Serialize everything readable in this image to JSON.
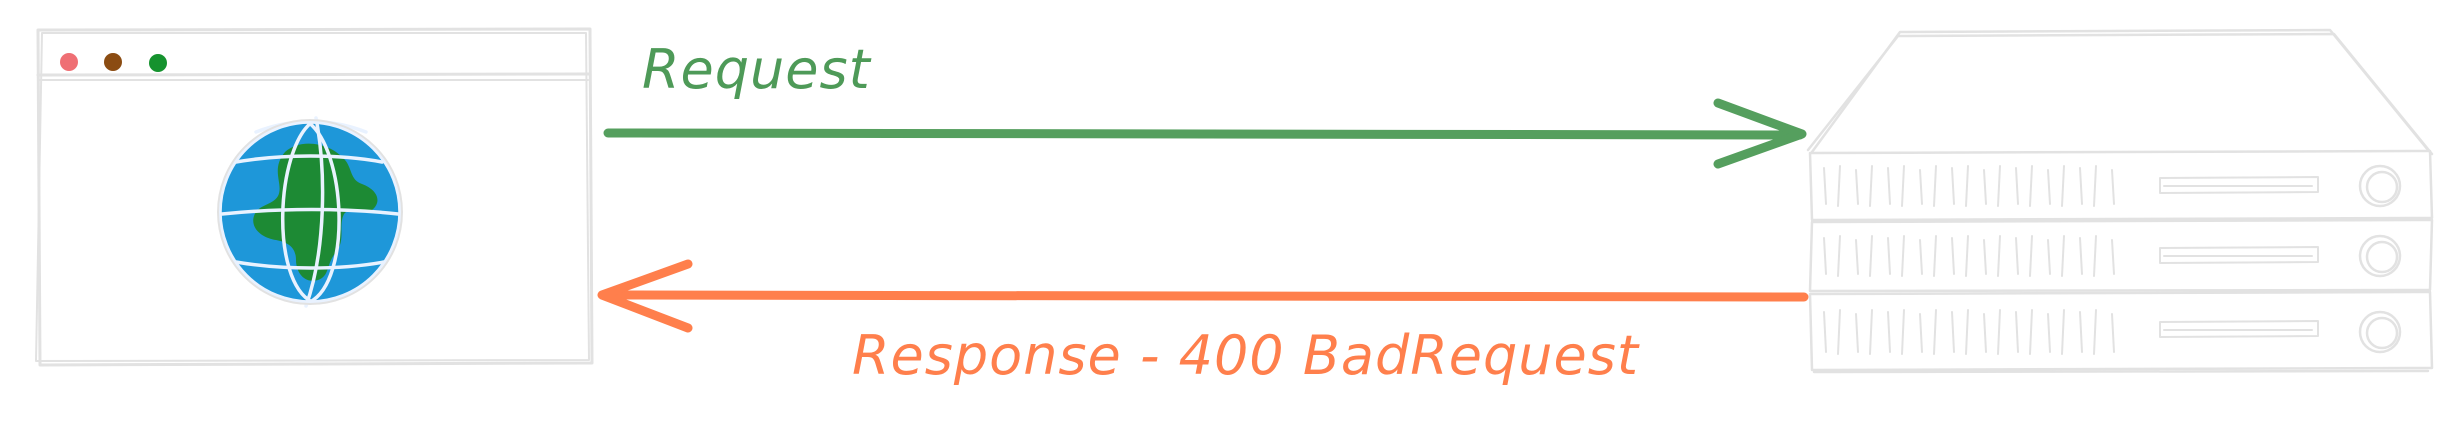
{
  "diagram": {
    "request_label": "Request",
    "response_label": "Response - 400 BadRequest"
  },
  "colors": {
    "request_arrow": "#559f5e",
    "response_arrow": "#ff7f4c",
    "request_text": "#4e9a58",
    "response_text": "#ff7f4c",
    "sketch_stroke": "#e2e2e2",
    "dot_red": "#ef6f74",
    "dot_brown": "#8b4c12",
    "dot_green": "#15922e",
    "globe_ocean": "#1e97d9",
    "globe_land": "#1d8a34",
    "globe_lines": "#e9f2ff"
  },
  "icons": {
    "client": "browser-window-icon",
    "globe": "globe-icon",
    "server": "server-rack-icon"
  }
}
